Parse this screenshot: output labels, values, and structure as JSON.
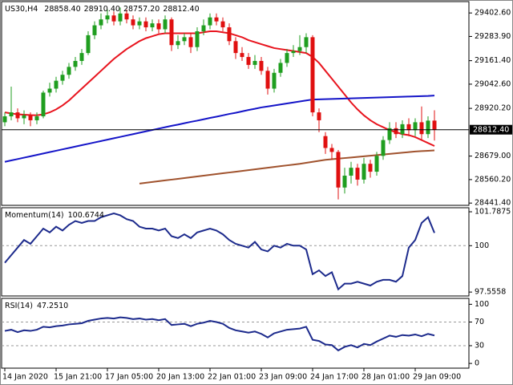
{
  "chart_data": [
    {
      "type": "candlestick",
      "title": "US30,H4",
      "header_values": [
        {
          "value": 28858.4,
          "label": "28858.40"
        },
        {
          "value": 28910.4,
          "label": "28910.40"
        },
        {
          "value": 28757.2,
          "label": "28757.20"
        },
        {
          "value": 28812.4,
          "label": "28812.40"
        }
      ],
      "categories": [
        "14 Jan 2020",
        null,
        null,
        null,
        null,
        null,
        null,
        null,
        "15 Jan 21:00",
        null,
        null,
        null,
        null,
        null,
        null,
        null,
        "17 Jan 05:00",
        null,
        null,
        null,
        null,
        null,
        null,
        null,
        "20 Jan 13:00",
        null,
        null,
        null,
        null,
        null,
        null,
        null,
        "22 Jan 01:00",
        null,
        null,
        null,
        null,
        null,
        null,
        null,
        "23 Jan 09:00",
        null,
        null,
        null,
        null,
        null,
        null,
        null,
        "24 Jan 17:00",
        null,
        null,
        null,
        null,
        null,
        null,
        null,
        "28 Jan 01:00",
        null,
        null,
        null,
        null,
        null,
        null,
        null,
        "29 Jan 09:00",
        null,
        null,
        null
      ],
      "open": [
        28850,
        28880,
        28900,
        28870,
        28885,
        28860,
        28880,
        29000,
        29020,
        29060,
        29090,
        29130,
        29160,
        29200,
        29290,
        29340,
        29370,
        29390,
        29360,
        29400,
        29370,
        29340,
        29360,
        29330,
        29350,
        29320,
        29370,
        29240,
        29260,
        29280,
        29230,
        29310,
        29340,
        29380,
        29360,
        29330,
        29260,
        29200,
        29180,
        29140,
        29160,
        29110,
        29020,
        29100,
        29150,
        29200,
        29210,
        29230,
        29280,
        28900,
        28780,
        28720,
        28700,
        28520,
        28580,
        28620,
        28560,
        28640,
        28600,
        28680,
        28760,
        28820,
        28790,
        28840,
        28810,
        28850,
        28790,
        28858.4
      ],
      "high": [
        28900,
        29030,
        28920,
        28910,
        28900,
        28900,
        29010,
        29050,
        29080,
        29110,
        29150,
        29180,
        29220,
        29310,
        29360,
        29400,
        29420,
        29410,
        29430,
        29420,
        29390,
        29380,
        29380,
        29370,
        29370,
        29390,
        29380,
        29290,
        29300,
        29300,
        29330,
        29370,
        29400,
        29400,
        29380,
        29350,
        29280,
        29230,
        29200,
        29190,
        29180,
        29130,
        29120,
        29170,
        29220,
        29240,
        29290,
        29300,
        29290,
        28920,
        28800,
        28740,
        28710,
        28620,
        28650,
        28640,
        28670,
        28660,
        28700,
        28780,
        28850,
        28850,
        28860,
        28870,
        28870,
        28930,
        28880,
        28910.4
      ],
      "low": [
        28830,
        28860,
        28850,
        28840,
        28830,
        28840,
        28870,
        28980,
        29000,
        29040,
        29070,
        29110,
        29140,
        29190,
        29270,
        29320,
        29350,
        29340,
        29340,
        29350,
        29320,
        29320,
        29310,
        29310,
        29300,
        29300,
        29210,
        29220,
        29240,
        29200,
        29210,
        29290,
        29320,
        29340,
        29310,
        29240,
        29170,
        29160,
        29120,
        29120,
        29090,
        28990,
        29000,
        29080,
        29130,
        29180,
        29190,
        29200,
        28880,
        28800,
        28690,
        28660,
        28460,
        28490,
        28540,
        28530,
        28540,
        28570,
        28580,
        28660,
        28740,
        28770,
        28770,
        28780,
        28780,
        28760,
        28770,
        28757.2
      ],
      "close": [
        28880,
        28900,
        28870,
        28885,
        28860,
        28880,
        29000,
        29020,
        29060,
        29090,
        29130,
        29160,
        29200,
        29290,
        29340,
        29370,
        29390,
        29360,
        29400,
        29370,
        29340,
        29360,
        29330,
        29350,
        29320,
        29370,
        29240,
        29260,
        29280,
        29230,
        29310,
        29340,
        29380,
        29360,
        29330,
        29260,
        29200,
        29180,
        29140,
        29160,
        29110,
        29020,
        29100,
        29150,
        29200,
        29210,
        29230,
        29280,
        28900,
        28860,
        28720,
        28700,
        28520,
        28580,
        28620,
        28560,
        28640,
        28600,
        28680,
        28760,
        28820,
        28790,
        28840,
        28810,
        28850,
        28790,
        28858.4,
        28812.4
      ],
      "up_color": "#1f9e1f",
      "down_color": "#e01010",
      "overlays": [
        {
          "color": "#e8141e",
          "values": [
            28900,
            28895,
            28890,
            28888,
            28886,
            28885,
            28890,
            28900,
            28915,
            28935,
            28960,
            28990,
            29020,
            29050,
            29080,
            29110,
            29140,
            29170,
            29195,
            29220,
            29240,
            29260,
            29275,
            29285,
            29295,
            29300,
            29300,
            29300,
            29300,
            29300,
            29300,
            29305,
            29310,
            29310,
            29305,
            29300,
            29290,
            29280,
            29265,
            29255,
            29245,
            29235,
            29225,
            29220,
            29215,
            29210,
            29205,
            29200,
            29180,
            29150,
            29110,
            29070,
            29030,
            28990,
            28950,
            28915,
            28885,
            28860,
            28840,
            28825,
            28810,
            28800,
            28790,
            28785,
            28775,
            28760,
            28745,
            28730
          ]
        },
        {
          "color": "#1414c8",
          "values": [
            28650,
            28657,
            28664,
            28671,
            28678,
            28685,
            28692,
            28699,
            28706,
            28713,
            28720,
            28727,
            28734,
            28741,
            28748,
            28755,
            28762,
            28769,
            28776,
            28783,
            28790,
            28797,
            28804,
            28811,
            28818,
            28825,
            28832,
            28838,
            28845,
            28852,
            28858,
            28865,
            28872,
            28878,
            28885,
            28892,
            28898,
            28905,
            28912,
            28918,
            28925,
            28930,
            28935,
            28940,
            28945,
            28950,
            28955,
            28960,
            28965,
            28966,
            28967,
            28968,
            28969,
            28970,
            28971,
            28972,
            28973,
            28974,
            28975,
            28976,
            28977,
            28978,
            28979,
            28980,
            28981,
            28982,
            28983,
            28985
          ]
        },
        {
          "color": "#a0522d",
          "values": [
            null,
            null,
            null,
            null,
            null,
            null,
            null,
            null,
            null,
            null,
            null,
            null,
            null,
            null,
            null,
            null,
            null,
            null,
            null,
            null,
            null,
            28540,
            28544,
            28548,
            28552,
            28556,
            28560,
            28564,
            28568,
            28572,
            28576,
            28580,
            28584,
            28588,
            28592,
            28596,
            28600,
            28604,
            28608,
            28612,
            28616,
            28620,
            28624,
            28628,
            28632,
            28636,
            28640,
            28645,
            28650,
            28655,
            28660,
            28663,
            28666,
            28669,
            28672,
            28675,
            28678,
            28681,
            28684,
            28687,
            28690,
            28693,
            28696,
            28699,
            28702,
            28704,
            28706,
            28708
          ]
        }
      ],
      "price_label": {
        "value": 28812.4,
        "label": "28812.40"
      },
      "ylim": [
        28430,
        29460
      ],
      "yticks": [
        {
          "value": 29402.6,
          "label": "29402.60"
        },
        {
          "value": 29283.9,
          "label": "29283.90"
        },
        {
          "value": 29161.4,
          "label": "29161.40"
        },
        {
          "value": 29042.6,
          "label": "29042.60"
        },
        {
          "value": 28920.2,
          "label": "28920.20"
        },
        {
          "value": 28679,
          "label": "28679.00"
        },
        {
          "value": 28560.2,
          "label": "28560.20"
        },
        {
          "value": 28441.4,
          "label": "28441.40"
        }
      ]
    },
    {
      "type": "line",
      "title": "Momentum(14)",
      "current": 100.6744,
      "color": "#1c2a8c",
      "values": [
        99.1,
        99.5,
        99.9,
        100.3,
        100.1,
        100.5,
        100.9,
        100.7,
        101.0,
        100.8,
        101.1,
        101.3,
        101.2,
        101.3,
        101.3,
        101.5,
        101.6,
        101.7,
        101.6,
        101.4,
        101.3,
        101.0,
        100.9,
        100.9,
        100.8,
        100.9,
        100.5,
        100.4,
        100.6,
        100.4,
        100.7,
        100.8,
        100.9,
        100.8,
        100.6,
        100.3,
        100.1,
        100.0,
        99.9,
        100.2,
        99.8,
        99.7,
        100.0,
        99.9,
        100.1,
        100.0,
        100.0,
        99.8,
        98.5,
        98.7,
        98.4,
        98.6,
        97.7,
        98.0,
        98.0,
        98.1,
        98.0,
        97.9,
        98.1,
        98.2,
        98.2,
        98.1,
        98.4,
        99.9,
        100.3,
        101.2,
        101.5,
        100.6744
      ],
      "ylim": [
        97.35,
        102.0
      ],
      "yticks": [
        101.7875,
        100,
        97.5558
      ],
      "levels": [
        100
      ]
    },
    {
      "type": "line",
      "title": "RSI(14)",
      "current": {
        "value": 47.251,
        "label": "47.2510"
      },
      "color": "#1c2a8c",
      "values": [
        55,
        57,
        53,
        56,
        55,
        57,
        62,
        61,
        63,
        64,
        66,
        67,
        68,
        72,
        74,
        76,
        77,
        76,
        78,
        77,
        75,
        76,
        74,
        75,
        73,
        75,
        65,
        66,
        67,
        63,
        67,
        69,
        72,
        70,
        67,
        60,
        56,
        54,
        52,
        54,
        50,
        44,
        51,
        54,
        57,
        58,
        59,
        62,
        40,
        38,
        32,
        31,
        22,
        28,
        31,
        27,
        33,
        31,
        37,
        42,
        47,
        45,
        48,
        47,
        49,
        46,
        50,
        47.251
      ],
      "ylim": [
        -8,
        110
      ],
      "yticks": [
        100,
        70,
        30,
        0
      ],
      "levels": [
        70,
        30
      ]
    }
  ]
}
